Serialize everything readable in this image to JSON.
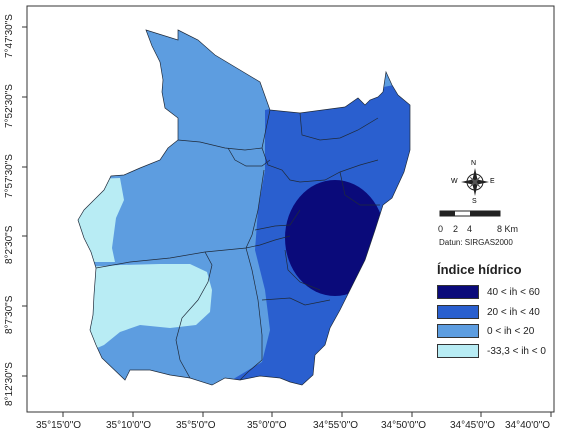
{
  "map": {
    "lat_ticks": [
      "7°47'30\"S",
      "7°52'30\"S",
      "7°57'30\"S",
      "8°2'30\"S",
      "8°7'30\"S",
      "8°12'30\"S"
    ],
    "lon_ticks": [
      "35°15'0\"O",
      "35°10'0\"O",
      "35°5'0\"O",
      "35°0'0\"O",
      "34°55'0\"O",
      "34°50'0\"O",
      "34°45'0\"O",
      "34°40'0\"O"
    ]
  },
  "north_arrow": {
    "n": "N",
    "s": "S",
    "e": "E",
    "w": "W"
  },
  "scale_bar": {
    "labels": [
      "0",
      "2",
      "4",
      "8 Km"
    ]
  },
  "datum": "Datun: SIRGAS2000",
  "legend": {
    "title": "Índice hídrico",
    "items": [
      {
        "label": "40 < ih < 60",
        "color": "#0a0a7a"
      },
      {
        "label": "20 < ih < 40",
        "color": "#2a5fcf"
      },
      {
        "label": "0 < ih < 20",
        "color": "#5d9de0"
      },
      {
        "label": "-33,3 < ih < 0",
        "color": "#b8ecf4"
      }
    ]
  }
}
